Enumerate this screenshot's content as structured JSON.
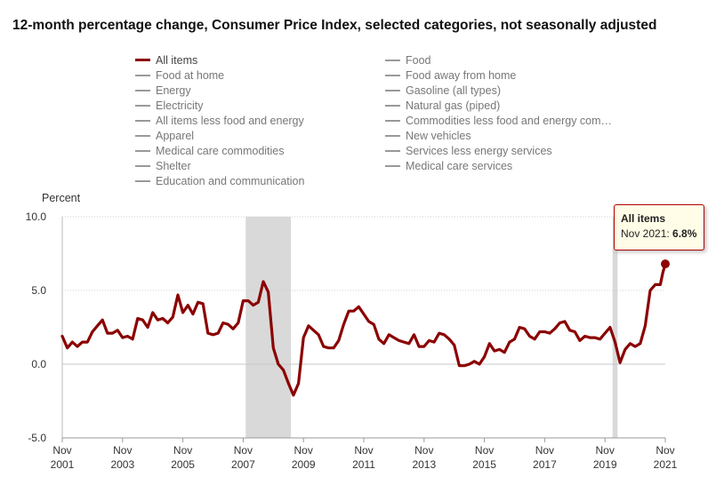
{
  "title": "12-month percentage change, Consumer Price Index, selected categories, not seasonally adjusted",
  "legend": {
    "left": [
      "All items",
      "Food at home",
      "Energy",
      "Electricity",
      "All items less food and energy",
      "Apparel",
      "Medical care commodities",
      "Shelter",
      "Education and communication"
    ],
    "right": [
      "Food",
      "Food away from home",
      "Gasoline (all types)",
      "Natural gas (piped)",
      "Commodities less food and energy com…",
      "New vehicles",
      "Services less energy services",
      "Medical care services"
    ]
  },
  "tooltip": {
    "series": "All items",
    "date": "Nov 2021:",
    "value": "6.8%"
  },
  "colors": {
    "series": "#8b0000",
    "inactive_legend": "#999999",
    "recession": "#d9d9d9",
    "grid": "#cccccc"
  },
  "chart_data": {
    "type": "line",
    "ylabel": "Percent",
    "ylim": [
      -5.0,
      10.0
    ],
    "yticks": [
      "10.0",
      "5.0",
      "0.0",
      "-5.0"
    ],
    "ytick_values": [
      10,
      5,
      0,
      -5
    ],
    "xlim": [
      "2001-11",
      "2021-11"
    ],
    "xticks": [
      {
        "month": "Nov",
        "year": "2001",
        "date": "2001-11"
      },
      {
        "month": "Nov",
        "year": "2003",
        "date": "2003-11"
      },
      {
        "month": "Nov",
        "year": "2005",
        "date": "2005-11"
      },
      {
        "month": "Nov",
        "year": "2007",
        "date": "2007-11"
      },
      {
        "month": "Nov",
        "year": "2009",
        "date": "2009-11"
      },
      {
        "month": "Nov",
        "year": "2011",
        "date": "2011-11"
      },
      {
        "month": "Nov",
        "year": "2013",
        "date": "2013-11"
      },
      {
        "month": "Nov",
        "year": "2015",
        "date": "2015-11"
      },
      {
        "month": "Nov",
        "year": "2017",
        "date": "2017-11"
      },
      {
        "month": "Nov",
        "year": "2019",
        "date": "2019-11"
      },
      {
        "month": "Nov",
        "year": "2021",
        "date": "2021-11"
      }
    ],
    "recessions": [
      {
        "start": "2007-12",
        "end": "2009-06"
      },
      {
        "start": "2020-02",
        "end": "2020-04"
      }
    ],
    "series": [
      {
        "name": "All items",
        "points": [
          [
            "2001-11",
            1.9
          ],
          [
            "2002-01",
            1.1
          ],
          [
            "2002-03",
            1.5
          ],
          [
            "2002-05",
            1.2
          ],
          [
            "2002-07",
            1.5
          ],
          [
            "2002-09",
            1.5
          ],
          [
            "2002-11",
            2.2
          ],
          [
            "2003-01",
            2.6
          ],
          [
            "2003-03",
            3.0
          ],
          [
            "2003-05",
            2.1
          ],
          [
            "2003-07",
            2.1
          ],
          [
            "2003-09",
            2.3
          ],
          [
            "2003-11",
            1.8
          ],
          [
            "2004-01",
            1.9
          ],
          [
            "2004-03",
            1.7
          ],
          [
            "2004-05",
            3.1
          ],
          [
            "2004-07",
            3.0
          ],
          [
            "2004-09",
            2.5
          ],
          [
            "2004-11",
            3.5
          ],
          [
            "2005-01",
            3.0
          ],
          [
            "2005-03",
            3.1
          ],
          [
            "2005-05",
            2.8
          ],
          [
            "2005-07",
            3.2
          ],
          [
            "2005-09",
            4.7
          ],
          [
            "2005-11",
            3.5
          ],
          [
            "2006-01",
            4.0
          ],
          [
            "2006-03",
            3.4
          ],
          [
            "2006-05",
            4.2
          ],
          [
            "2006-07",
            4.1
          ],
          [
            "2006-09",
            2.1
          ],
          [
            "2006-11",
            2.0
          ],
          [
            "2007-01",
            2.1
          ],
          [
            "2007-03",
            2.8
          ],
          [
            "2007-05",
            2.7
          ],
          [
            "2007-07",
            2.4
          ],
          [
            "2007-09",
            2.8
          ],
          [
            "2007-11",
            4.3
          ],
          [
            "2008-01",
            4.3
          ],
          [
            "2008-03",
            4.0
          ],
          [
            "2008-05",
            4.2
          ],
          [
            "2008-07",
            5.6
          ],
          [
            "2008-09",
            4.9
          ],
          [
            "2008-11",
            1.1
          ],
          [
            "2009-01",
            0.0
          ],
          [
            "2009-03",
            -0.4
          ],
          [
            "2009-05",
            -1.3
          ],
          [
            "2009-07",
            -2.1
          ],
          [
            "2009-09",
            -1.3
          ],
          [
            "2009-11",
            1.8
          ],
          [
            "2010-01",
            2.6
          ],
          [
            "2010-03",
            2.3
          ],
          [
            "2010-05",
            2.0
          ],
          [
            "2010-07",
            1.2
          ],
          [
            "2010-09",
            1.1
          ],
          [
            "2010-11",
            1.1
          ],
          [
            "2011-01",
            1.6
          ],
          [
            "2011-03",
            2.7
          ],
          [
            "2011-05",
            3.6
          ],
          [
            "2011-07",
            3.6
          ],
          [
            "2011-09",
            3.9
          ],
          [
            "2011-11",
            3.4
          ],
          [
            "2012-01",
            2.9
          ],
          [
            "2012-03",
            2.7
          ],
          [
            "2012-05",
            1.7
          ],
          [
            "2012-07",
            1.4
          ],
          [
            "2012-09",
            2.0
          ],
          [
            "2012-11",
            1.8
          ],
          [
            "2013-01",
            1.6
          ],
          [
            "2013-03",
            1.5
          ],
          [
            "2013-05",
            1.4
          ],
          [
            "2013-07",
            2.0
          ],
          [
            "2013-09",
            1.2
          ],
          [
            "2013-11",
            1.2
          ],
          [
            "2014-01",
            1.6
          ],
          [
            "2014-03",
            1.5
          ],
          [
            "2014-05",
            2.1
          ],
          [
            "2014-07",
            2.0
          ],
          [
            "2014-09",
            1.7
          ],
          [
            "2014-11",
            1.3
          ],
          [
            "2015-01",
            -0.1
          ],
          [
            "2015-03",
            -0.1
          ],
          [
            "2015-05",
            0.0
          ],
          [
            "2015-07",
            0.2
          ],
          [
            "2015-09",
            0.0
          ],
          [
            "2015-11",
            0.5
          ],
          [
            "2016-01",
            1.4
          ],
          [
            "2016-03",
            0.9
          ],
          [
            "2016-05",
            1.0
          ],
          [
            "2016-07",
            0.8
          ],
          [
            "2016-09",
            1.5
          ],
          [
            "2016-11",
            1.7
          ],
          [
            "2017-01",
            2.5
          ],
          [
            "2017-03",
            2.4
          ],
          [
            "2017-05",
            1.9
          ],
          [
            "2017-07",
            1.7
          ],
          [
            "2017-09",
            2.2
          ],
          [
            "2017-11",
            2.2
          ],
          [
            "2018-01",
            2.1
          ],
          [
            "2018-03",
            2.4
          ],
          [
            "2018-05",
            2.8
          ],
          [
            "2018-07",
            2.9
          ],
          [
            "2018-09",
            2.3
          ],
          [
            "2018-11",
            2.2
          ],
          [
            "2019-01",
            1.6
          ],
          [
            "2019-03",
            1.9
          ],
          [
            "2019-05",
            1.8
          ],
          [
            "2019-07",
            1.8
          ],
          [
            "2019-09",
            1.7
          ],
          [
            "2019-11",
            2.1
          ],
          [
            "2020-01",
            2.5
          ],
          [
            "2020-03",
            1.5
          ],
          [
            "2020-05",
            0.1
          ],
          [
            "2020-07",
            1.0
          ],
          [
            "2020-09",
            1.4
          ],
          [
            "2020-11",
            1.2
          ],
          [
            "2021-01",
            1.4
          ],
          [
            "2021-03",
            2.6
          ],
          [
            "2021-05",
            5.0
          ],
          [
            "2021-07",
            5.4
          ],
          [
            "2021-09",
            5.4
          ],
          [
            "2021-10",
            6.2
          ],
          [
            "2021-11",
            6.8
          ]
        ]
      }
    ]
  }
}
